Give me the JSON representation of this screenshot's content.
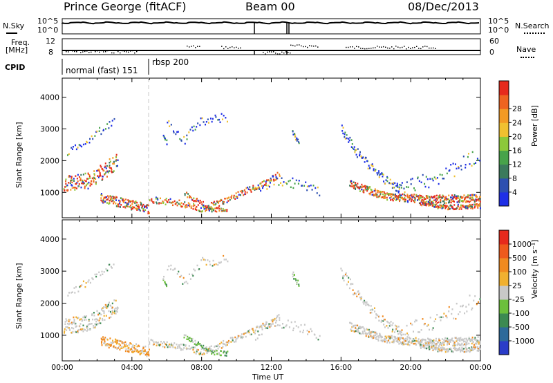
{
  "header": {
    "station": "Prince George (fitACF)",
    "beam": "Beam 00",
    "date": "08/Dec/2013"
  },
  "strip": {
    "nsky_label": "N.Sky",
    "nsearch_label": "N.Search",
    "freq_label": "Freq.",
    "freq_unit": "[MHz]",
    "nave_label": "Nave",
    "cpid_label": "CPID",
    "left_ticks": [
      "10^5",
      "10^0",
      "12",
      "8"
    ],
    "right_ticks": [
      "10^5",
      "10^0",
      "60",
      "0"
    ],
    "cpid_modes": [
      "normal (fast) 151",
      "rbsp 200"
    ]
  },
  "chart_data": [
    {
      "type": "heatmap",
      "name": "power",
      "ylabel": "Slant Range [km]",
      "yticks": [
        "1000",
        "2000",
        "3000",
        "4000"
      ],
      "ylim": [
        200,
        4600
      ],
      "colorbar": {
        "label": "Power [dB]",
        "ticks": [
          "4",
          "8",
          "12",
          "16",
          "20",
          "24",
          "28"
        ],
        "colors": [
          "#1f2fe6",
          "#2d4fb0",
          "#3b7a5c",
          "#47a34a",
          "#8cc83a",
          "#f0c030",
          "#f29a24",
          "#ee6420",
          "#e62a1c"
        ]
      },
      "xlim": [
        0,
        24
      ]
    },
    {
      "type": "heatmap",
      "name": "velocity",
      "ylabel": "Slant Range [km]",
      "yticks": [
        "1000",
        "2000",
        "3000",
        "4000"
      ],
      "ylim": [
        200,
        4600
      ],
      "colorbar": {
        "label": "Velocity [m s⁻¹]",
        "ticks": [
          "1000",
          "500",
          "100",
          "25",
          "-25",
          "-100",
          "-500",
          "-1000"
        ],
        "colors": [
          "#2a3cc8",
          "#2d6a9a",
          "#3c8a52",
          "#6cc03c",
          "#c8c8c8",
          "#f0b030",
          "#f08a20",
          "#ee5a1c",
          "#e62a1c"
        ]
      },
      "xlim": [
        0,
        24
      ]
    }
  ],
  "xaxis": {
    "label": "Time UT",
    "ticks": [
      "00:00",
      "04:00",
      "08:00",
      "12:00",
      "16:00",
      "20:00",
      "00:00"
    ]
  }
}
